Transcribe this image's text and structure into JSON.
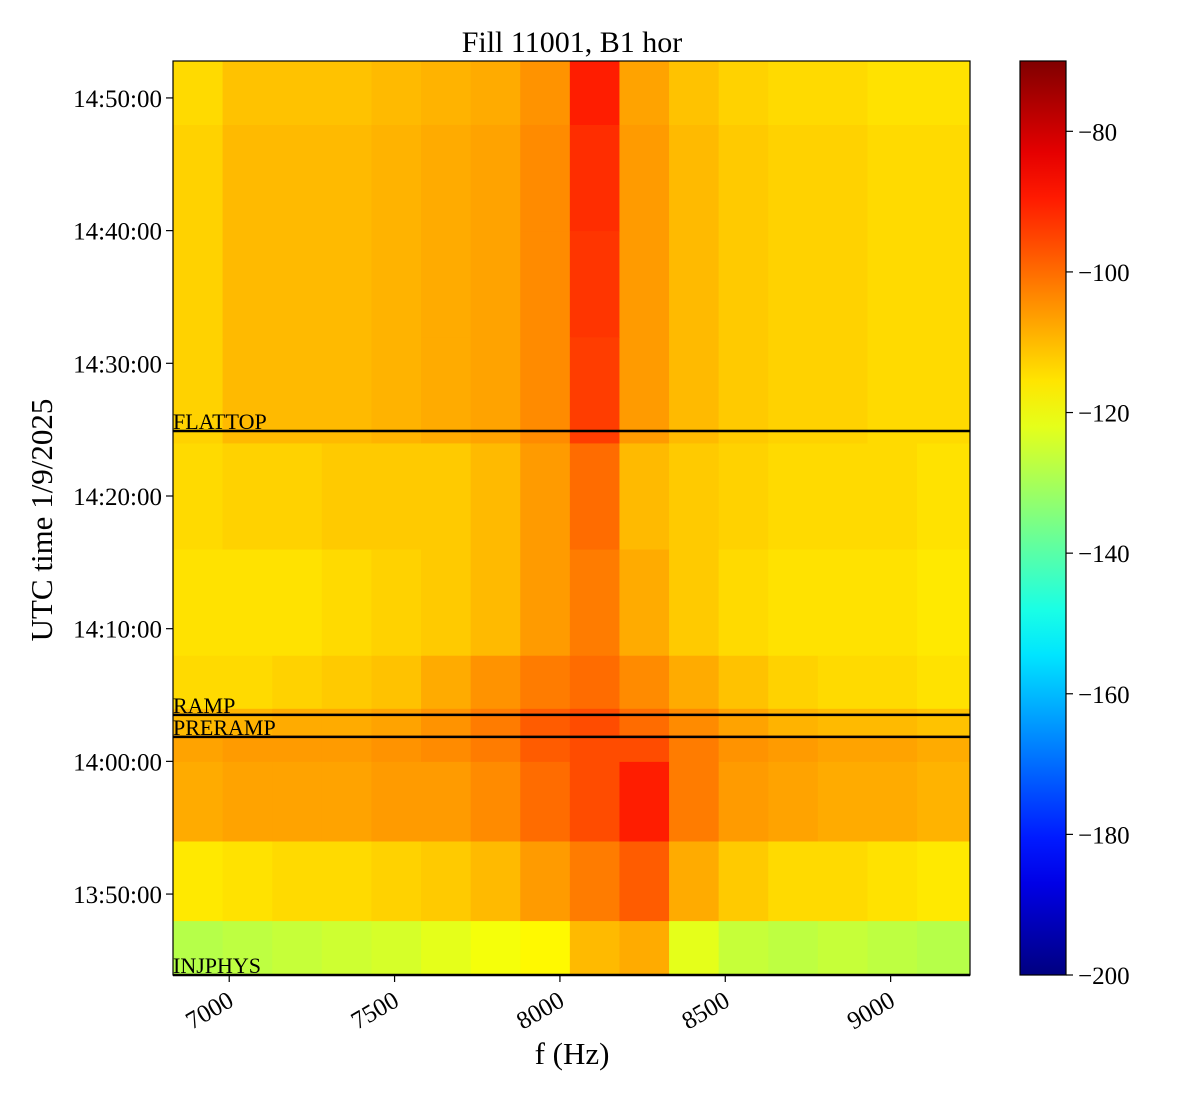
{
  "chart_data": {
    "type": "spectrogram",
    "title": "Fill 11001, B1 hor",
    "xlabel": "f (Hz)",
    "ylabel": "UTC time 1/9/2025",
    "x": [
      6830,
      6980,
      7130,
      7280,
      7430,
      7580,
      7730,
      7880,
      8030,
      8180,
      8330,
      8480,
      8630,
      8780,
      8930,
      9080,
      9240
    ],
    "y": [
      "13:43:54",
      "13:48:00",
      "13:54:00",
      "14:00:00",
      "14:02:00",
      "14:04:00",
      "14:08:00",
      "14:16:00",
      "14:24:00",
      "14:32:00",
      "14:40:00",
      "14:48:00",
      "14:52:47"
    ],
    "z": [
      [
        -128,
        -127,
        -126,
        -125,
        -124,
        -122,
        -120,
        -118,
        -110,
        -108,
        -122,
        -126,
        -127,
        -126,
        -127,
        -128
      ],
      [
        -116,
        -115,
        -114,
        -114,
        -113,
        -112,
        -110,
        -106,
        -102,
        -98,
        -108,
        -112,
        -114,
        -114,
        -115,
        -116
      ],
      [
        -108,
        -107,
        -107,
        -107,
        -106,
        -106,
        -104,
        -100,
        -96,
        -90,
        -102,
        -106,
        -107,
        -108,
        -108,
        -109
      ],
      [
        -107,
        -106,
        -106,
        -106,
        -105,
        -104,
        -102,
        -98,
        -96,
        -96,
        -102,
        -105,
        -106,
        -107,
        -107,
        -108
      ],
      [
        -110,
        -109,
        -108,
        -108,
        -107,
        -105,
        -102,
        -98,
        -96,
        -100,
        -104,
        -107,
        -109,
        -110,
        -110,
        -111
      ],
      [
        -114,
        -114,
        -113,
        -112,
        -111,
        -108,
        -105,
        -102,
        -100,
        -104,
        -108,
        -111,
        -113,
        -114,
        -114,
        -115
      ],
      [
        -115,
        -115,
        -115,
        -114,
        -113,
        -112,
        -110,
        -106,
        -102,
        -108,
        -112,
        -114,
        -115,
        -115,
        -115,
        -116
      ],
      [
        -114,
        -113,
        -113,
        -112,
        -112,
        -112,
        -110,
        -106,
        -100,
        -110,
        -112,
        -113,
        -114,
        -114,
        -114,
        -115
      ],
      [
        -113,
        -110,
        -110,
        -110,
        -109,
        -108,
        -107,
        -104,
        -94,
        -106,
        -110,
        -112,
        -113,
        -113,
        -114,
        -114
      ],
      [
        -113,
        -110,
        -110,
        -110,
        -109,
        -108,
        -107,
        -104,
        -93,
        -106,
        -110,
        -112,
        -113,
        -113,
        -114,
        -114
      ],
      [
        -113,
        -110,
        -110,
        -110,
        -109,
        -108,
        -107,
        -104,
        -92,
        -106,
        -110,
        -112,
        -113,
        -113,
        -114,
        -114
      ],
      [
        -114,
        -111,
        -111,
        -111,
        -110,
        -109,
        -108,
        -105,
        -90,
        -107,
        -111,
        -113,
        -114,
        -114,
        -115,
        -115
      ]
    ],
    "xlim": [
      6830,
      9240
    ],
    "xticks": [
      7000,
      7500,
      8000,
      8500,
      9000
    ],
    "ylim": [
      "13:43:54",
      "14:52:47"
    ],
    "yticks": [
      "13:50:00",
      "14:00:00",
      "14:10:00",
      "14:20:00",
      "14:30:00",
      "14:40:00",
      "14:50:00"
    ],
    "zlim": [
      -200,
      -70
    ],
    "zticks": [
      {
        "value": -80,
        "label": "−80"
      },
      {
        "value": -100,
        "label": "−100"
      },
      {
        "value": -120,
        "label": "−120"
      },
      {
        "value": -140,
        "label": "−140"
      },
      {
        "value": -160,
        "label": "−160"
      },
      {
        "value": -180,
        "label": "−180"
      },
      {
        "value": -200,
        "label": "−200"
      }
    ],
    "colormap": "jet",
    "events": [
      {
        "label": "FLATTOP",
        "time": "14:24:54"
      },
      {
        "label": "RAMP",
        "time": "14:03:30"
      },
      {
        "label": "PRERAMP",
        "time": "14:01:51"
      },
      {
        "label": "INJPHYS",
        "time": "13:43:54"
      }
    ]
  }
}
